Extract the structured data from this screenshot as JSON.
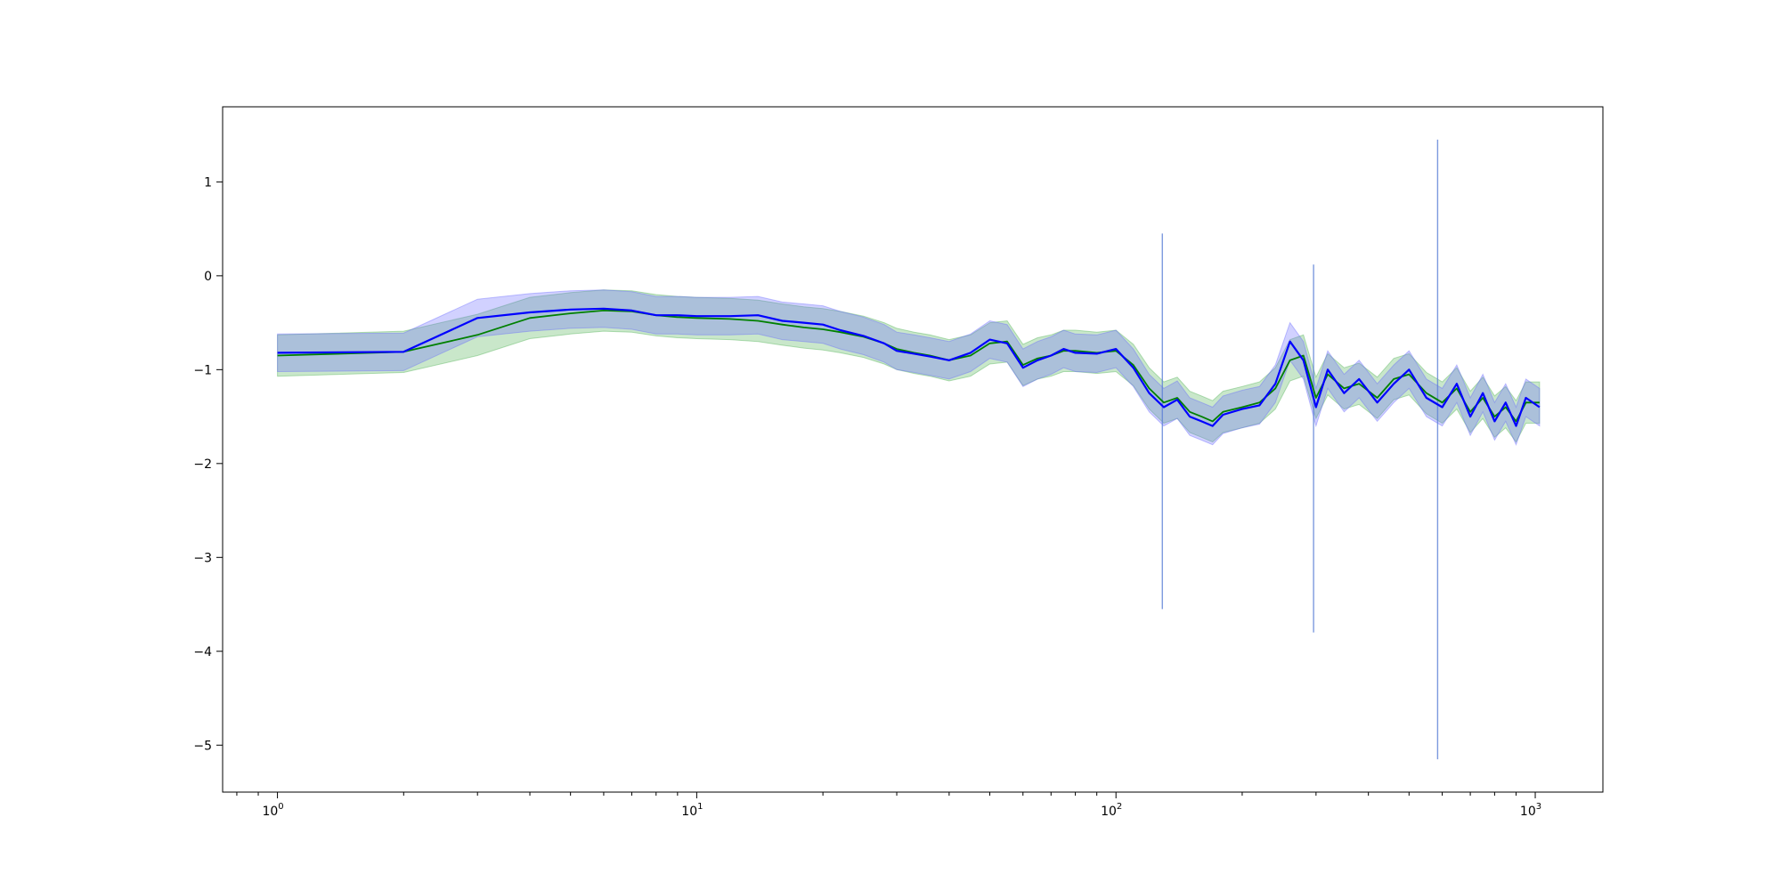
{
  "chart_data": {
    "type": "line",
    "title": "",
    "xlabel": "",
    "ylabel": "",
    "xscale": "log",
    "xlim": [
      0.74,
      1450
    ],
    "ylim": [
      -5.5,
      1.8
    ],
    "grid": false,
    "legend": "none",
    "x_ticks": [
      {
        "value": 1,
        "base": "10",
        "exp": "0"
      },
      {
        "value": 10,
        "base": "10",
        "exp": "1"
      },
      {
        "value": 100,
        "base": "10",
        "exp": "2"
      },
      {
        "value": 1000,
        "base": "10",
        "exp": "3"
      }
    ],
    "y_ticks": [
      {
        "value": 1,
        "label": "1"
      },
      {
        "value": 0,
        "label": "0"
      },
      {
        "value": -1,
        "label": "−1"
      },
      {
        "value": -2,
        "label": "−2"
      },
      {
        "value": -3,
        "label": "−3"
      },
      {
        "value": -4,
        "label": "−4"
      },
      {
        "value": -5,
        "label": "−5"
      }
    ],
    "band_width_green": 0.22,
    "band_width_blue": 0.2,
    "series": [
      {
        "color": "#008000",
        "band_color": "#4caf50",
        "x": [
          1,
          2,
          3,
          4,
          5,
          6,
          7,
          8,
          9,
          10,
          12,
          14,
          16,
          18,
          20,
          22,
          25,
          28,
          30,
          33,
          36,
          40,
          45,
          50,
          55,
          60,
          65,
          70,
          75,
          80,
          90,
          100,
          110,
          120,
          130,
          140,
          150,
          160,
          170,
          180,
          200,
          220,
          240,
          260,
          280,
          300,
          320,
          350,
          380,
          420,
          460,
          500,
          550,
          600,
          650,
          700,
          750,
          800,
          850,
          900,
          950,
          1024
        ],
        "y": [
          -0.85,
          -0.81,
          -0.63,
          -0.45,
          -0.4,
          -0.37,
          -0.38,
          -0.42,
          -0.44,
          -0.45,
          -0.46,
          -0.48,
          -0.52,
          -0.55,
          -0.57,
          -0.6,
          -0.65,
          -0.72,
          -0.78,
          -0.82,
          -0.85,
          -0.9,
          -0.85,
          -0.72,
          -0.7,
          -0.95,
          -0.88,
          -0.85,
          -0.8,
          -0.8,
          -0.82,
          -0.8,
          -0.95,
          -1.2,
          -1.35,
          -1.3,
          -1.45,
          -1.5,
          -1.55,
          -1.45,
          -1.4,
          -1.35,
          -1.2,
          -0.9,
          -0.85,
          -1.3,
          -1.05,
          -1.2,
          -1.15,
          -1.3,
          -1.1,
          -1.05,
          -1.25,
          -1.35,
          -1.2,
          -1.45,
          -1.3,
          -1.5,
          -1.4,
          -1.55,
          -1.35,
          -1.35
        ]
      },
      {
        "color": "#0000ff",
        "band_color": "#6666ff",
        "x": [
          1,
          2,
          3,
          4,
          5,
          6,
          7,
          8,
          9,
          10,
          12,
          14,
          16,
          18,
          20,
          22,
          25,
          28,
          30,
          33,
          36,
          40,
          45,
          50,
          55,
          60,
          65,
          70,
          75,
          80,
          90,
          100,
          110,
          120,
          130,
          140,
          150,
          160,
          170,
          180,
          200,
          220,
          240,
          260,
          280,
          300,
          320,
          350,
          380,
          420,
          460,
          500,
          550,
          600,
          650,
          700,
          750,
          800,
          850,
          900,
          950,
          1024
        ],
        "y": [
          -0.82,
          -0.81,
          -0.45,
          -0.39,
          -0.36,
          -0.35,
          -0.37,
          -0.42,
          -0.42,
          -0.43,
          -0.43,
          -0.42,
          -0.48,
          -0.5,
          -0.52,
          -0.58,
          -0.64,
          -0.72,
          -0.8,
          -0.83,
          -0.86,
          -0.9,
          -0.82,
          -0.68,
          -0.72,
          -0.98,
          -0.9,
          -0.85,
          -0.78,
          -0.82,
          -0.83,
          -0.78,
          -0.98,
          -1.25,
          -1.4,
          -1.32,
          -1.5,
          -1.55,
          -1.6,
          -1.48,
          -1.42,
          -1.38,
          -1.15,
          -0.7,
          -0.9,
          -1.4,
          -1.0,
          -1.25,
          -1.1,
          -1.35,
          -1.15,
          -1.0,
          -1.3,
          -1.4,
          -1.15,
          -1.5,
          -1.25,
          -1.55,
          -1.35,
          -1.6,
          -1.3,
          -1.4
        ],
        "spikes": [
          {
            "x": 129,
            "min": -3.55,
            "max": 0.45
          },
          {
            "x": 296,
            "min": -3.8,
            "max": 0.12
          },
          {
            "x": 585,
            "min": -5.15,
            "max": 1.45
          }
        ]
      }
    ]
  }
}
